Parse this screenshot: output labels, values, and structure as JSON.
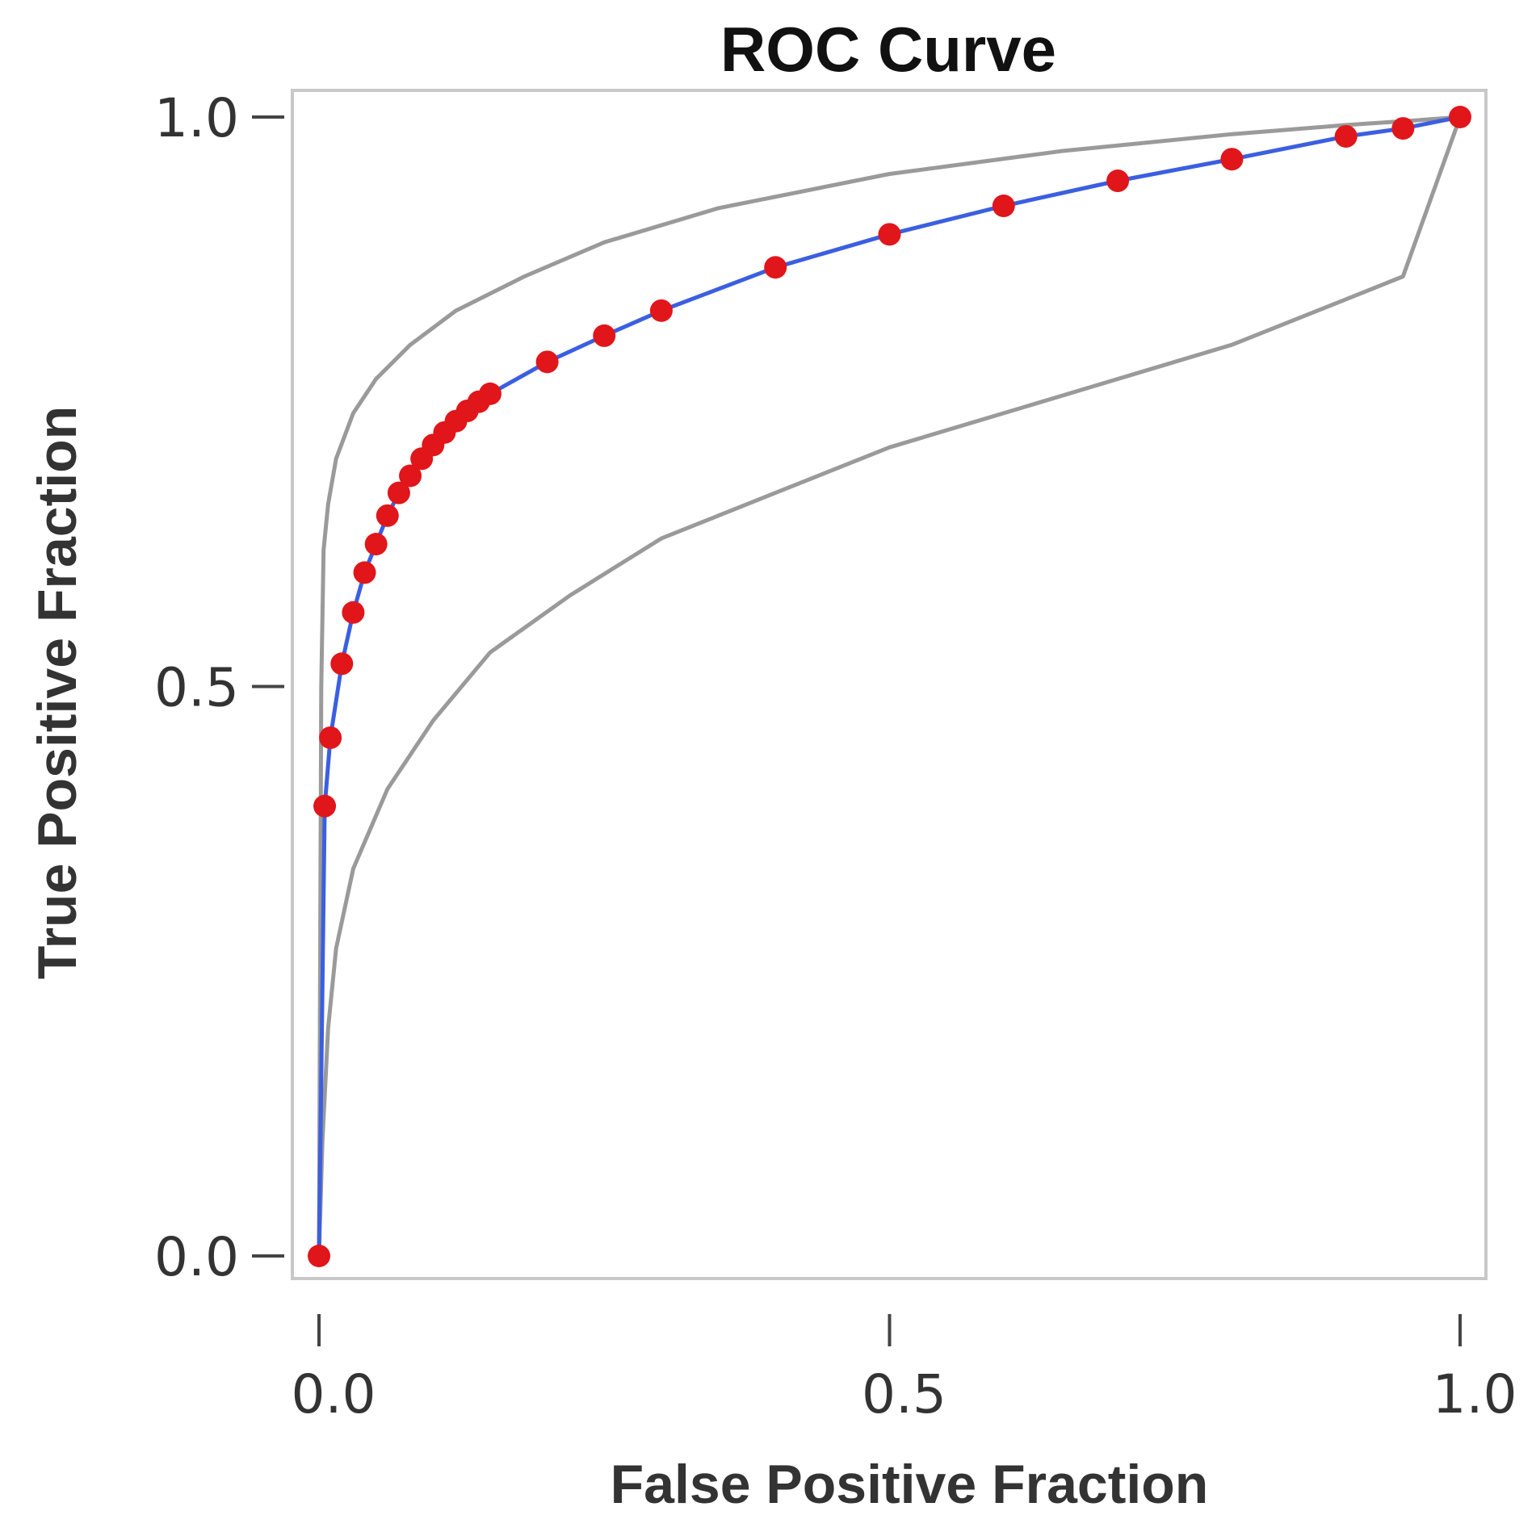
{
  "chart_data": {
    "type": "line",
    "title": "ROC Curve",
    "xlabel": "False Positive Fraction",
    "ylabel": "True Positive Fraction",
    "xlim": [
      0,
      1
    ],
    "ylim": [
      0,
      1
    ],
    "x_ticks": [
      "0.0",
      "0.5",
      "1.0"
    ],
    "y_ticks": [
      "0.0",
      "0.5",
      "1.0"
    ],
    "x_tick_values": [
      0,
      0.5,
      1
    ],
    "y_tick_values": [
      0,
      0.5,
      1
    ],
    "grid": false,
    "series": [
      {
        "role": "upper-band",
        "color": "#9a9a9a",
        "x": [
          0,
          0.002,
          0.004,
          0.008,
          0.015,
          0.03,
          0.05,
          0.08,
          0.12,
          0.18,
          0.25,
          0.35,
          0.5,
          0.65,
          0.8,
          0.9,
          0.96,
          1.0
        ],
        "y": [
          0,
          0.5,
          0.62,
          0.66,
          0.7,
          0.74,
          0.77,
          0.8,
          0.83,
          0.86,
          0.89,
          0.92,
          0.95,
          0.97,
          0.985,
          0.993,
          0.997,
          1.0
        ]
      },
      {
        "role": "lower-band",
        "color": "#9a9a9a",
        "x": [
          0,
          0.003,
          0.008,
          0.015,
          0.03,
          0.06,
          0.1,
          0.15,
          0.22,
          0.3,
          0.4,
          0.5,
          0.6,
          0.7,
          0.8,
          0.9,
          0.95,
          1.0
        ],
        "y": [
          0,
          0.1,
          0.2,
          0.27,
          0.34,
          0.41,
          0.47,
          0.53,
          0.58,
          0.63,
          0.67,
          0.71,
          0.74,
          0.77,
          0.8,
          0.84,
          0.86,
          1.0
        ]
      },
      {
        "role": "roc",
        "color": "#3b5fe0",
        "marker_color": "#e0161a",
        "x": [
          0,
          0.005,
          0.01,
          0.02,
          0.03,
          0.04,
          0.05,
          0.06,
          0.07,
          0.08,
          0.09,
          0.1,
          0.11,
          0.12,
          0.13,
          0.14,
          0.15,
          0.2,
          0.25,
          0.3,
          0.4,
          0.5,
          0.6,
          0.7,
          0.8,
          0.9,
          0.95,
          1.0
        ],
        "y": [
          0,
          0.395,
          0.455,
          0.52,
          0.565,
          0.6,
          0.625,
          0.65,
          0.67,
          0.685,
          0.7,
          0.712,
          0.723,
          0.733,
          0.742,
          0.75,
          0.757,
          0.785,
          0.808,
          0.83,
          0.868,
          0.897,
          0.922,
          0.944,
          0.963,
          0.983,
          0.99,
          1.0
        ]
      }
    ]
  }
}
